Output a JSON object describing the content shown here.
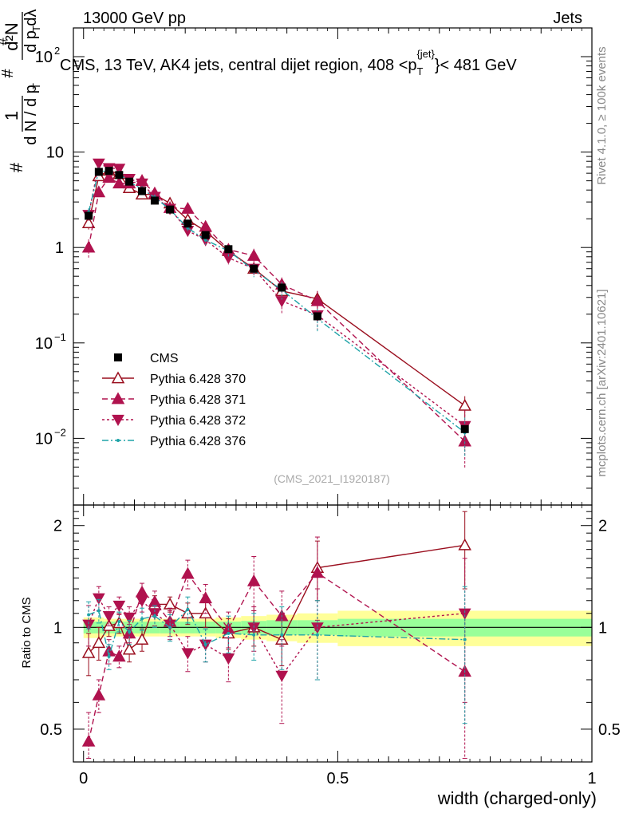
{
  "header": {
    "left": "13000 GeV pp",
    "right": "Jets"
  },
  "side_labels": {
    "rivet": "Rivet 4.1.0, ≥ 100k events",
    "mcplots": "mcplots.cern.ch [arXiv:2401.10621]"
  },
  "chart_data": {
    "type": "line",
    "title": "CMS, 13 TeV, AK4 jets, central dijet region, 408 < p_T^{jet} < 481 GeV",
    "title_parts": {
      "main": "CMS, 13 TeV, AK4 jets, central dijet region, 408 <p",
      "sub": "T",
      "sup": "{jet}",
      "end": "}< 481 GeV"
    },
    "analysis_tag": "(CMS_2021_I1920187)",
    "xlabel": "width (charged-only)",
    "ylabel_main": "1/N dN/dp_T d^2N/dp_T dλ",
    "ylabel_ratio": "Ratio to CMS",
    "xlim": [
      -0.02,
      1.0
    ],
    "ylim_main": [
      0.002,
      200
    ],
    "ylim_ratio": [
      0.4,
      2.3
    ],
    "x_ticks": [
      "0",
      "0.5",
      "1"
    ],
    "x_tick_values": [
      0,
      0.5,
      1
    ],
    "y_ticks_main": [
      {
        "value": 0.01,
        "label": "10",
        "exp": "−2"
      },
      {
        "value": 0.1,
        "label": "10",
        "exp": "−1"
      },
      {
        "value": 1,
        "label": "1",
        "exp": ""
      },
      {
        "value": 10,
        "label": "10",
        "exp": ""
      },
      {
        "value": 100,
        "label": "10",
        "exp": "2"
      }
    ],
    "y_ticks_ratio": [
      {
        "value": 0.5,
        "label": "0.5"
      },
      {
        "value": 1,
        "label": "1"
      },
      {
        "value": 2,
        "label": "2"
      }
    ],
    "x": [
      0.01,
      0.03,
      0.05,
      0.07,
      0.09,
      0.115,
      0.14,
      0.17,
      0.205,
      0.24,
      0.285,
      0.335,
      0.39,
      0.46,
      0.75
    ],
    "bin_edges": [
      0,
      0.02,
      0.04,
      0.06,
      0.08,
      0.1,
      0.13,
      0.15,
      0.19,
      0.22,
      0.26,
      0.31,
      0.36,
      0.42,
      0.5,
      1.0
    ],
    "legend": [
      "CMS",
      "Pythia 6.428 370",
      "Pythia 6.428 371",
      "Pythia 6.428 372",
      "Pythia 6.428 376"
    ],
    "legend_position": "lower-left",
    "data": {
      "name": "CMS",
      "values": [
        2.15,
        6.2,
        6.35,
        5.75,
        4.9,
        3.9,
        3.1,
        2.5,
        1.78,
        1.35,
        0.96,
        0.6,
        0.38,
        0.19,
        0.0125
      ],
      "band_inner": [
        0.04,
        0.04,
        0.04,
        0.04,
        0.04,
        0.04,
        0.04,
        0.04,
        0.04,
        0.04,
        0.04,
        0.045,
        0.05,
        0.05,
        0.06
      ],
      "band_outer": [
        0.07,
        0.07,
        0.06,
        0.06,
        0.06,
        0.06,
        0.06,
        0.06,
        0.06,
        0.06,
        0.07,
        0.08,
        0.09,
        0.1,
        0.12
      ]
    },
    "series": [
      {
        "name": "Pythia 6.428 370",
        "color": "#9a0e1e",
        "marker": "open-triangle-up",
        "dash": "",
        "values": [
          1.8,
          5.6,
          6.4,
          5.9,
          4.2,
          3.6,
          3.6,
          2.9,
          1.95,
          1.48,
          0.92,
          0.6,
          0.35,
          0.29,
          0.022
        ],
        "ratio": [
          0.84,
          0.9,
          1.01,
          1.03,
          0.86,
          0.92,
          1.17,
          1.17,
          1.1,
          1.1,
          0.96,
          1.0,
          0.92,
          1.5,
          1.75
        ],
        "ratio_err": [
          0.12,
          0.1,
          0.07,
          0.07,
          0.07,
          0.07,
          0.07,
          0.06,
          0.08,
          0.1,
          0.1,
          0.12,
          0.15,
          0.3,
          0.45
        ]
      },
      {
        "name": "Pythia 6.428 371",
        "color": "#b0124e",
        "marker": "filled-triangle-up",
        "dash": "7,4",
        "values": [
          1.0,
          3.8,
          5.4,
          4.7,
          4.7,
          5.0,
          3.7,
          2.6,
          2.55,
          1.65,
          0.95,
          0.82,
          0.41,
          0.275,
          0.0093
        ],
        "ratio": [
          0.46,
          0.63,
          0.85,
          0.82,
          0.96,
          1.27,
          1.19,
          1.04,
          1.44,
          1.22,
          0.99,
          1.37,
          1.08,
          1.45,
          0.74
        ],
        "ratio_err": [
          0.1,
          0.07,
          0.07,
          0.06,
          0.06,
          0.08,
          0.09,
          0.1,
          0.14,
          0.12,
          0.12,
          0.25,
          0.2,
          0.4,
          0.35
        ]
      },
      {
        "name": "Pythia 6.428 372",
        "color": "#b0124e",
        "marker": "filled-triangle-down",
        "dash": "3,3",
        "values": [
          2.2,
          7.6,
          6.8,
          6.7,
          5.25,
          4.7,
          3.4,
          2.55,
          1.5,
          1.2,
          0.78,
          0.6,
          0.275,
          0.195,
          0.0135
        ],
        "ratio": [
          1.02,
          1.22,
          1.08,
          1.16,
          1.07,
          1.2,
          1.1,
          1.02,
          0.84,
          0.89,
          0.81,
          1.0,
          0.72,
          1.0,
          1.1
        ],
        "ratio_err": [
          0.14,
          0.1,
          0.07,
          0.07,
          0.08,
          0.09,
          0.09,
          0.1,
          0.1,
          0.1,
          0.12,
          0.15,
          0.2,
          0.3,
          0.5
        ]
      },
      {
        "name": "Pythia 6.428 376",
        "color": "#1fa3a8",
        "marker": "small-dot",
        "dash": "8,3,2,3",
        "values": [
          2.35,
          6.4,
          6.2,
          6.0,
          4.85,
          4.1,
          3.35,
          2.5,
          1.6,
          1.2,
          0.92,
          0.58,
          0.36,
          0.18,
          0.0115
        ],
        "ratio": [
          1.09,
          1.12,
          0.82,
          1.04,
          0.97,
          1.06,
          1.08,
          1.0,
          1.13,
          0.89,
          0.96,
          0.95,
          0.95,
          0.95,
          0.92
        ],
        "ratio_err": [
          0.1,
          0.09,
          0.07,
          0.07,
          0.08,
          0.08,
          0.08,
          0.09,
          0.1,
          0.1,
          0.12,
          0.15,
          0.2,
          0.25,
          0.4
        ]
      }
    ]
  }
}
